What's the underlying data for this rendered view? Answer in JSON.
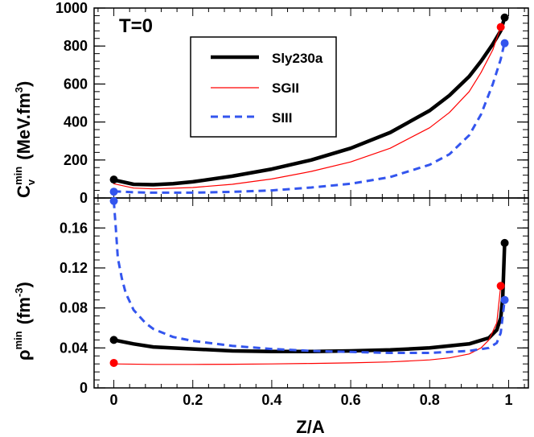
{
  "chart_data": [
    {
      "type": "line",
      "panel": "top",
      "annotation": "T=0",
      "ylabel": {
        "base": "C",
        "sub": "v",
        "sup": "min",
        "unit": "(MeV.fm",
        "unit_sup": "3",
        "close": ")"
      },
      "xlim": [
        -0.05,
        1.05
      ],
      "ylim": [
        0,
        1000
      ],
      "yticks": [
        0,
        200,
        400,
        600,
        800,
        1000
      ],
      "yticklabels": [
        "0",
        "200",
        "400",
        "600",
        "800",
        "1000"
      ],
      "legend": {
        "position": "top-center",
        "entries": [
          "Sly230a",
          "SGII",
          "SIII"
        ]
      },
      "series": [
        {
          "name": "Sly230a",
          "color": "#000000",
          "style": "solid-thick",
          "x": [
            0.0,
            0.05,
            0.1,
            0.15,
            0.2,
            0.3,
            0.4,
            0.5,
            0.6,
            0.7,
            0.8,
            0.85,
            0.9,
            0.93,
            0.96,
            0.98,
            0.99
          ],
          "y": [
            95,
            72,
            70,
            75,
            85,
            115,
            152,
            200,
            262,
            345,
            460,
            540,
            640,
            720,
            810,
            880,
            950
          ],
          "endpoints": [
            [
              0.0,
              97
            ],
            [
              0.99,
              950
            ]
          ]
        },
        {
          "name": "SGII",
          "color": "#ff0000",
          "style": "solid-thin",
          "x": [
            0.0,
            0.05,
            0.1,
            0.2,
            0.3,
            0.4,
            0.5,
            0.6,
            0.7,
            0.8,
            0.85,
            0.9,
            0.93,
            0.96,
            0.98
          ],
          "y": [
            75,
            52,
            48,
            55,
            72,
            100,
            140,
            190,
            262,
            370,
            450,
            560,
            660,
            780,
            900
          ],
          "endpoints": [
            [
              0.98,
              900
            ]
          ]
        },
        {
          "name": "SIII",
          "color": "#3355ee",
          "style": "dashed",
          "x": [
            0.0,
            0.05,
            0.1,
            0.2,
            0.3,
            0.4,
            0.5,
            0.6,
            0.7,
            0.8,
            0.85,
            0.9,
            0.93,
            0.96,
            0.98,
            0.99
          ],
          "y": [
            35,
            30,
            28,
            28,
            32,
            40,
            55,
            75,
            110,
            175,
            230,
            330,
            440,
            600,
            730,
            820
          ],
          "endpoints": [
            [
              0.0,
              33
            ],
            [
              0.99,
              815
            ]
          ]
        }
      ]
    },
    {
      "type": "line",
      "panel": "bottom",
      "ylabel": {
        "base": "ρ",
        "sup": "min",
        "unit": "(fm",
        "unit_sup": "-3",
        "close": ")"
      },
      "xlabel": "Z/A",
      "xlim": [
        -0.05,
        1.05
      ],
      "ylim": [
        0,
        0.19
      ],
      "xticks": [
        0,
        0.2,
        0.4,
        0.6,
        0.8,
        1
      ],
      "xticklabels": [
        "0",
        "0.2",
        "0.4",
        "0.6",
        "0.8",
        "1"
      ],
      "yticks": [
        0,
        0.04,
        0.08,
        0.12,
        0.16
      ],
      "yticklabels": [
        "0",
        "0.04",
        "0.08",
        "0.12",
        "0.16"
      ],
      "series": [
        {
          "name": "Sly230a",
          "color": "#000000",
          "style": "solid-thick",
          "x": [
            0.0,
            0.05,
            0.1,
            0.2,
            0.3,
            0.4,
            0.5,
            0.6,
            0.7,
            0.8,
            0.9,
            0.95,
            0.97,
            0.98,
            0.985,
            0.99
          ],
          "y": [
            0.048,
            0.044,
            0.041,
            0.039,
            0.037,
            0.0365,
            0.0365,
            0.037,
            0.038,
            0.04,
            0.044,
            0.05,
            0.058,
            0.07,
            0.09,
            0.145
          ],
          "endpoints": [
            [
              0.0,
              0.048
            ],
            [
              0.99,
              0.145
            ]
          ]
        },
        {
          "name": "SGII",
          "color": "#ff0000",
          "style": "solid-thin",
          "x": [
            0.0,
            0.1,
            0.2,
            0.3,
            0.4,
            0.5,
            0.6,
            0.7,
            0.8,
            0.85,
            0.9,
            0.93,
            0.95,
            0.97,
            0.98
          ],
          "y": [
            0.024,
            0.0235,
            0.0235,
            0.0237,
            0.024,
            0.0245,
            0.025,
            0.026,
            0.028,
            0.03,
            0.034,
            0.04,
            0.048,
            0.065,
            0.102
          ],
          "endpoints": [
            [
              0.0,
              0.025
            ],
            [
              0.98,
              0.102
            ]
          ]
        },
        {
          "name": "SIII",
          "color": "#3355ee",
          "style": "dashed",
          "x": [
            0.0,
            0.005,
            0.01,
            0.02,
            0.03,
            0.05,
            0.08,
            0.1,
            0.15,
            0.2,
            0.3,
            0.4,
            0.5,
            0.6,
            0.7,
            0.8,
            0.9,
            0.95,
            0.97,
            0.98,
            0.99
          ],
          "y": [
            0.187,
            0.16,
            0.13,
            0.11,
            0.095,
            0.078,
            0.065,
            0.059,
            0.051,
            0.047,
            0.042,
            0.039,
            0.037,
            0.036,
            0.035,
            0.035,
            0.037,
            0.04,
            0.045,
            0.055,
            0.088
          ],
          "endpoints": [
            [
              0.0,
              0.187
            ],
            [
              0.99,
              0.088
            ]
          ]
        }
      ]
    }
  ]
}
